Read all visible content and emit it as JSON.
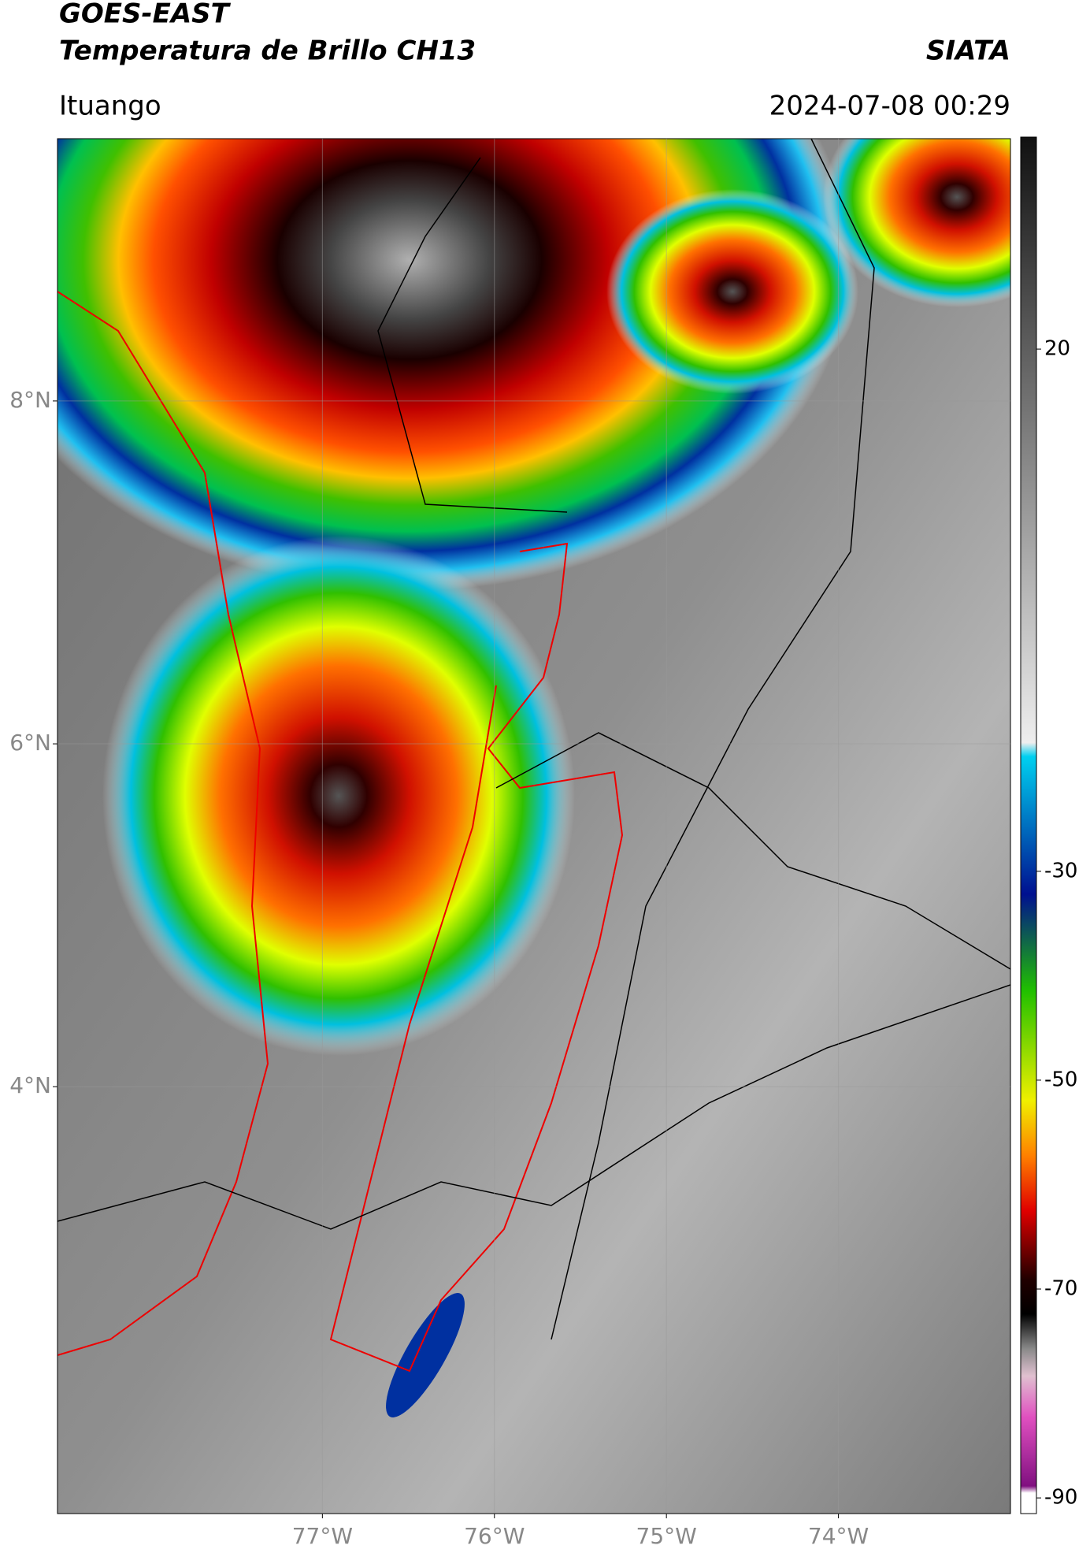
{
  "header": {
    "title": "GOES-EAST",
    "subtitle": "Temperatura de Brillo CH13",
    "source": "SIATA",
    "location": "Ituango",
    "datetime": "2024-07-08 00:29"
  },
  "map": {
    "xlim": [
      -78.54,
      -73.0
    ],
    "ylim": [
      1.51,
      9.53
    ],
    "xticks": [
      {
        "value": -77,
        "label": "77°W"
      },
      {
        "value": -76,
        "label": "76°W"
      },
      {
        "value": -75,
        "label": "75°W"
      },
      {
        "value": -74,
        "label": "74°W"
      }
    ],
    "yticks": [
      {
        "value": 8,
        "label": "8°N"
      },
      {
        "value": 6,
        "label": "6°N"
      },
      {
        "value": 4,
        "label": "4°N"
      }
    ],
    "grid": true
  },
  "colorbar": {
    "lim": [
      -91.5,
      40.3
    ],
    "ticks": [
      20,
      -30,
      -50,
      -70,
      -90
    ]
  }
}
